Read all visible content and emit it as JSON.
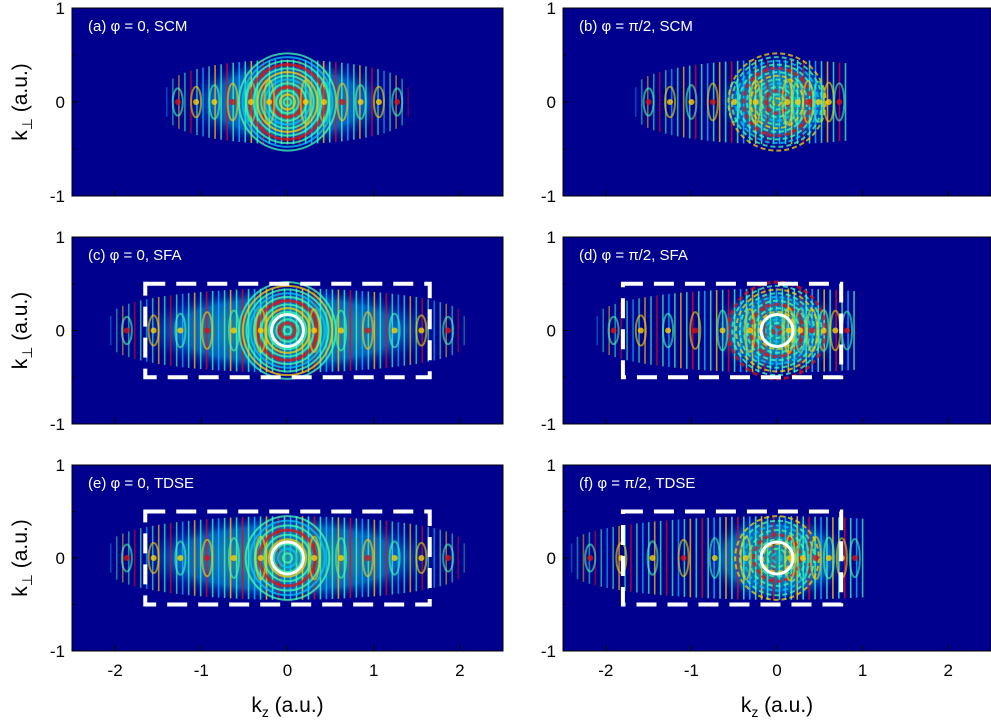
{
  "chart_data": {
    "type": "heatmap",
    "colors": {
      "background": "#00008f",
      "low": "#00c8ff",
      "mid": "#40ffb0",
      "high": "#ffd000",
      "peak": "#e01010",
      "annotation": "#ffffff"
    },
    "xlabel_main": "k",
    "xlabel_sub": "z",
    "xlabel_units": " (a.u.)",
    "ylabel_main": "k",
    "ylabel_sub": "⊥",
    "ylabel_units": " (a.u.)",
    "xlim": [
      -2.5,
      2.5
    ],
    "ylim": [
      -1,
      1
    ],
    "xticks": [
      "-2",
      "-1",
      "0",
      "1",
      "2"
    ],
    "yticks": [
      "-1",
      "0",
      "1"
    ],
    "panels": [
      {
        "label": "(a) φ = 0, SCM",
        "phase": "0",
        "model": "SCM",
        "center_kz": 0,
        "extent_kz": [
          -1.4,
          1.4
        ],
        "extent_kperp": [
          -0.45,
          0.45
        ],
        "box": null,
        "circle": false
      },
      {
        "label": "(b) φ = π/2, SCM",
        "phase": "π/2",
        "model": "SCM",
        "center_kz": 0,
        "extent_kz": [
          -1.65,
          0.8
        ],
        "extent_kperp": [
          -0.45,
          0.45
        ],
        "box": null,
        "circle": false
      },
      {
        "label": "(c) φ = 0,   SFA",
        "phase": "0",
        "model": "SFA",
        "center_kz": 0,
        "extent_kz": [
          -2.05,
          2.05
        ],
        "extent_kperp": [
          -0.45,
          0.45
        ],
        "box": {
          "kz": [
            -1.65,
            1.65
          ],
          "kperp": [
            -0.5,
            0.5
          ]
        },
        "circle": true
      },
      {
        "label": "(d) φ = π/2,   SFA",
        "phase": "π/2",
        "model": "SFA",
        "center_kz": 0,
        "extent_kz": [
          -2.1,
          0.9
        ],
        "extent_kperp": [
          -0.45,
          0.45
        ],
        "box": {
          "kz": [
            -1.8,
            0.75
          ],
          "kperp": [
            -0.5,
            0.5
          ]
        },
        "circle": true
      },
      {
        "label": "(e) φ = 0,  TDSE",
        "phase": "0",
        "model": "TDSE",
        "center_kz": 0,
        "extent_kz": [
          -2.05,
          2.05
        ],
        "extent_kperp": [
          -0.45,
          0.45
        ],
        "box": {
          "kz": [
            -1.65,
            1.65
          ],
          "kperp": [
            -0.5,
            0.5
          ]
        },
        "circle": true
      },
      {
        "label": "(f) φ = π/2,  TDSE",
        "phase": "π/2",
        "model": "TDSE",
        "center_kz": 0,
        "extent_kz": [
          -2.4,
          1.0
        ],
        "extent_kperp": [
          -0.45,
          0.45
        ],
        "box": {
          "kz": [
            -1.8,
            0.75
          ],
          "kperp": [
            -0.5,
            0.5
          ]
        },
        "circle": true
      }
    ]
  }
}
